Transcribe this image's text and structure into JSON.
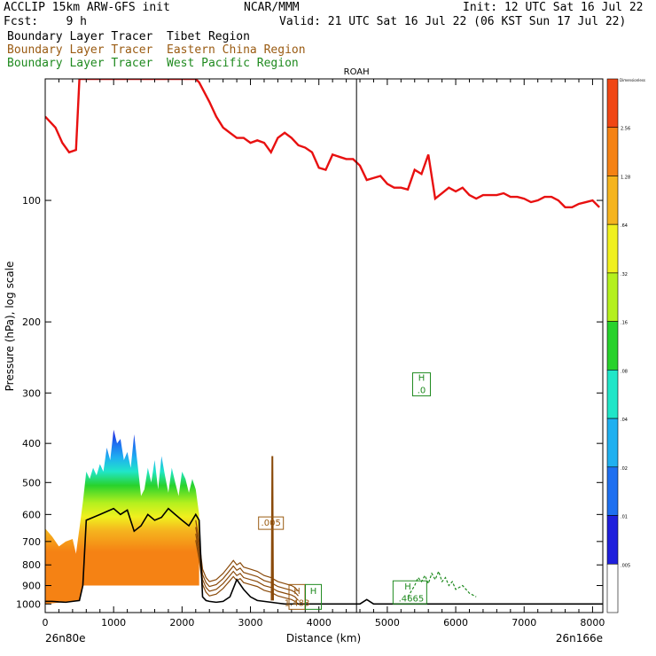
{
  "header": {
    "left_line1": "ACCLIP 15km ARW-GFS init",
    "center_line1": "NCAR/MMM",
    "right_line1": "Init: 12 UTC Sat 16 Jul 22",
    "left_line2": "Fcst:    9 h",
    "right_line2": "Valid: 21 UTC Sat 16 Jul 22 (06 KST Sun 17 Jul 22)",
    "legend": [
      {
        "label": "Boundary Layer Tracer  Tibet Region",
        "color": "#000000"
      },
      {
        "label": "Boundary Layer Tracer  Eastern China Region",
        "color": "#9a5b12"
      },
      {
        "label": "Boundary Layer Tracer  West Pacific Region",
        "color": "#1f8a1f"
      }
    ]
  },
  "chart_data": {
    "type": "cross-section",
    "xlabel": "Distance (km)",
    "ylabel": "Pressure (hPa), log scale",
    "xlim": [
      0,
      8150
    ],
    "ylim": [
      1050,
      50
    ],
    "x_ticks": [
      "0",
      "1000",
      "2000",
      "3000",
      "4000",
      "5000",
      "6000",
      "7000",
      "8000"
    ],
    "y_ticks": [
      "100",
      "200",
      "300",
      "400",
      "500",
      "600",
      "700",
      "800",
      "900",
      "1000"
    ],
    "left_endpoint": "26n80e",
    "right_endpoint": "26n166e",
    "marker": {
      "label": "ROAH",
      "x": 4550
    },
    "colorbar": {
      "top_label": "Dimensionless",
      "labels": [
        ".005",
        ".01",
        ".02",
        ".04",
        ".08",
        ".16",
        ".32",
        ".64",
        "1.28",
        "2.56"
      ],
      "colors": [
        "#ffffff",
        "#1f1fdc",
        "#1e6ff0",
        "#1fb0f0",
        "#20e6c8",
        "#28d22c",
        "#b4f01e",
        "#f0f01e",
        "#f5b41e",
        "#f58214",
        "#f04614"
      ]
    },
    "tropopause_line": {
      "color": "#e81010",
      "x": [
        0,
        150,
        250,
        350,
        450,
        500,
        950,
        1100,
        1200,
        1400,
        1600,
        1800,
        2000,
        2200,
        2250,
        2400,
        2500,
        2600,
        2700,
        2800,
        2900,
        3000,
        3100,
        3200,
        3300,
        3400,
        3500,
        3600,
        3700,
        3800,
        3900,
        4000,
        4100,
        4200,
        4300,
        4400,
        4500,
        4600,
        4700,
        4800,
        4900,
        5000,
        5100,
        5200,
        5300,
        5400,
        5500,
        5600,
        5700,
        5800,
        5900,
        6000,
        6100,
        6200,
        6300,
        6400,
        6500,
        6600,
        6700,
        6800,
        6900,
        7000,
        7100,
        7200,
        7300,
        7400,
        7500,
        7600,
        7700,
        7800,
        7900,
        8000,
        8100
      ],
      "y": [
        62,
        66,
        72,
        76,
        75,
        50,
        50,
        50,
        50,
        50,
        50,
        50,
        50,
        50,
        51,
        57,
        62,
        66,
        68,
        70,
        70,
        72,
        71,
        72,
        76,
        70,
        68,
        70,
        73,
        74,
        76,
        83,
        84,
        77,
        78,
        79,
        79,
        82,
        89,
        88,
        87,
        91,
        93,
        93,
        94,
        84,
        86,
        77,
        99,
        96,
        93,
        95,
        93,
        97,
        99,
        97,
        97,
        97,
        96,
        98,
        98,
        99,
        101,
        100,
        98,
        98,
        100,
        104,
        104,
        102,
        101,
        100,
        104
      ]
    },
    "tracer_outline": {
      "x": [
        0,
        100,
        200,
        300,
        400,
        500,
        550,
        600,
        700,
        800,
        900,
        1000,
        1100,
        1200,
        1300,
        1400,
        1500,
        1600,
        1700,
        1800,
        1900,
        2000,
        2100,
        2200,
        2250,
        2300,
        2350,
        2400,
        2500,
        2600,
        2700,
        2800,
        2900,
        3000,
        3100,
        3200,
        3300,
        3400,
        3500,
        3600,
        3700,
        3800,
        3900,
        4000,
        4100,
        4200,
        4300,
        4400,
        4500,
        4600,
        4700,
        4800,
        5000,
        5500,
        6000,
        6500,
        7000,
        7500,
        8000,
        8150
      ],
      "y": [
        985,
        985,
        988,
        990,
        985,
        980,
        900,
        620,
        610,
        600,
        590,
        580,
        600,
        585,
        660,
        640,
        600,
        620,
        610,
        580,
        600,
        620,
        640,
        600,
        620,
        960,
        980,
        985,
        990,
        985,
        960,
        870,
        920,
        960,
        980,
        985,
        990,
        995,
        1000,
        1000,
        1000,
        1000,
        1000,
        1000,
        1000,
        1000,
        1000,
        1000,
        1000,
        1000,
        975,
        1000,
        1000,
        1000,
        1000,
        1000,
        1000,
        1000,
        1000,
        1000
      ]
    },
    "tracer_top": {
      "x": [
        0,
        100,
        200,
        300,
        400,
        450,
        500,
        550,
        600,
        650,
        700,
        750,
        800,
        850,
        900,
        950,
        1000,
        1050,
        1100,
        1150,
        1200,
        1250,
        1300,
        1350,
        1400,
        1450,
        1500,
        1550,
        1600,
        1650,
        1700,
        1750,
        1800,
        1850,
        1900,
        1950,
        2000,
        2050,
        2100,
        2150,
        2200,
        2250
      ],
      "y": [
        650,
        680,
        720,
        700,
        690,
        750,
        650,
        560,
        470,
        490,
        460,
        480,
        450,
        470,
        410,
        440,
        370,
        400,
        390,
        440,
        420,
        460,
        380,
        450,
        540,
        520,
        460,
        500,
        440,
        520,
        430,
        480,
        530,
        460,
        500,
        540,
        470,
        490,
        530,
        490,
        520,
        600
      ]
    },
    "annotations": [
      {
        "text": ".005",
        "x": 3300,
        "p": 640,
        "color": "#9a5b12"
      },
      {
        "text": "H",
        "x": 5500,
        "p": 280,
        "color": "#1f8a1f"
      },
      {
        "text": ".0",
        "x": 5500,
        "p": 300,
        "color": "#1f8a1f"
      },
      {
        "text": "H",
        "x": 3680,
        "p": 945,
        "color": "#9a5b12"
      },
      {
        "text": "1.483",
        "x": 3680,
        "p": 1010,
        "color": "#9a5b12"
      },
      {
        "text": "H",
        "x": 3920,
        "p": 945,
        "color": "#1f8a1f"
      },
      {
        "text": "H",
        "x": 5300,
        "p": 920,
        "color": "#1f8a1f"
      },
      {
        "text": ".4665",
        "x": 5350,
        "p": 985,
        "color": "#1f8a1f"
      }
    ]
  }
}
